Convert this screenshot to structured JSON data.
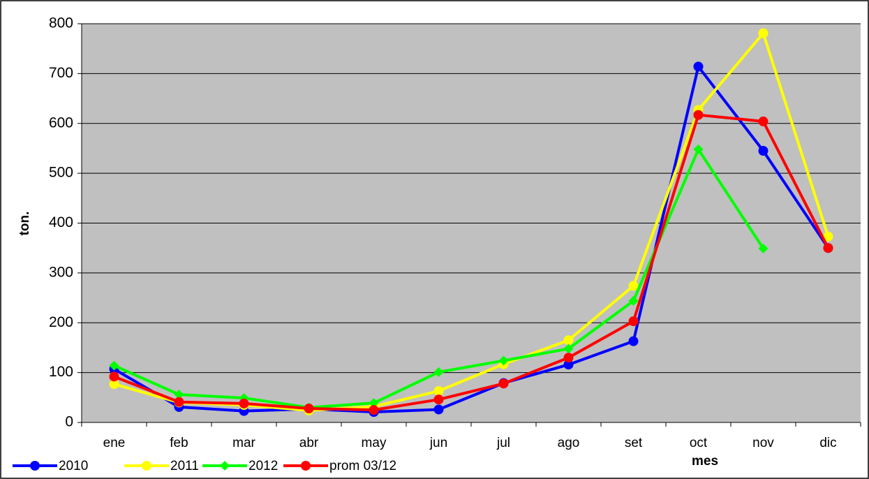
{
  "chart_data": {
    "type": "line",
    "x_label": "mes",
    "y_label": "ton.",
    "categories": [
      "ene",
      "feb",
      "mar",
      "abr",
      "may",
      "jun",
      "jul",
      "ago",
      "set",
      "oct",
      "nov",
      "dic"
    ],
    "series": [
      {
        "name": "2010",
        "color": "#0000ff",
        "marker": "circle",
        "values": [
          107,
          31,
          23,
          27,
          21,
          26,
          79,
          116,
          163,
          714,
          545,
          350
        ]
      },
      {
        "name": "2011",
        "color": "#ffff00",
        "marker": "circle",
        "values": [
          77,
          40,
          35,
          24,
          32,
          63,
          117,
          165,
          274,
          627,
          781,
          373
        ]
      },
      {
        "name": "2012",
        "color": "#00ff00",
        "marker": "diamond",
        "values": [
          114,
          56,
          49,
          30,
          39,
          101,
          124,
          148,
          244,
          548,
          349,
          null
        ]
      },
      {
        "name": "prom 03/12",
        "color": "#ff0000",
        "marker": "circle",
        "values": [
          92,
          41,
          38,
          28,
          25,
          46,
          78,
          130,
          203,
          617,
          604,
          350
        ]
      }
    ],
    "ylim": [
      0,
      800
    ],
    "yticks": [
      0,
      100,
      200,
      300,
      400,
      500,
      600,
      700,
      800
    ],
    "grid": true,
    "plot_background": "#c0c0c0",
    "legend": "bottom-left"
  }
}
